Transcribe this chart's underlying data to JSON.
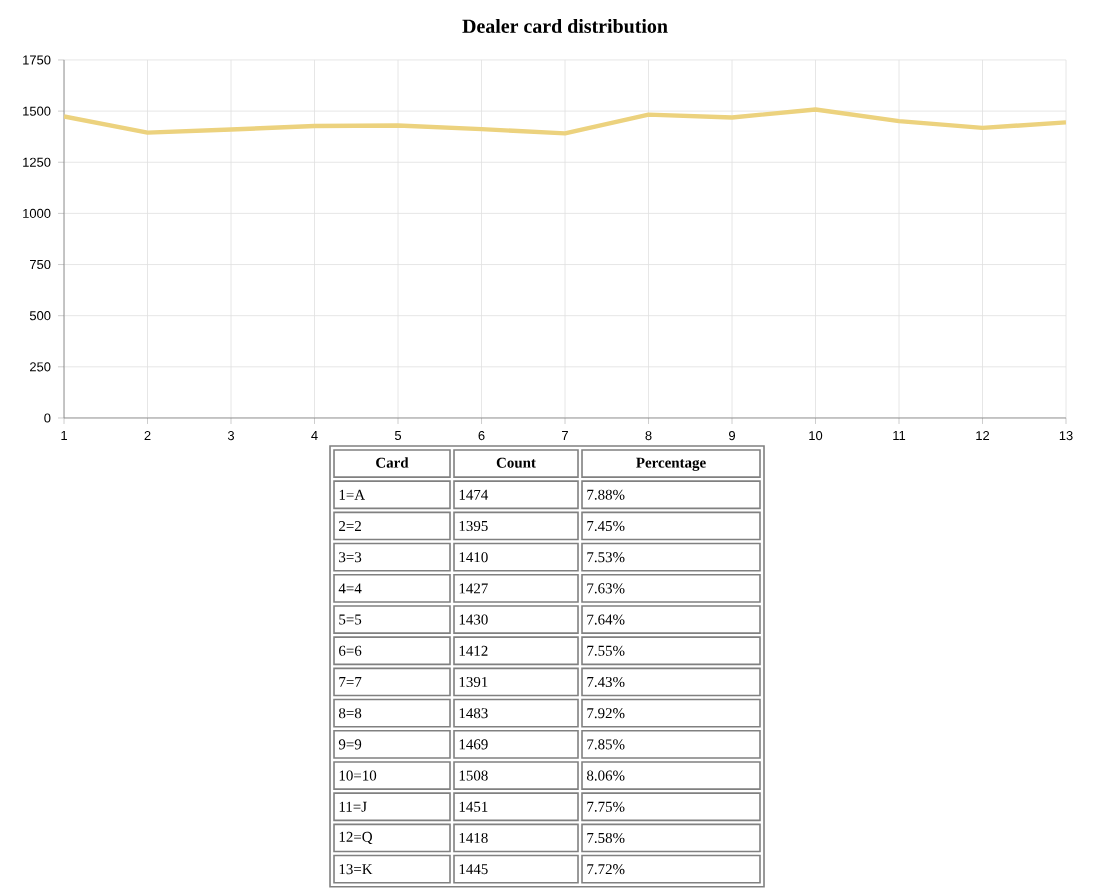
{
  "chart_data": [
    {
      "type": "line",
      "title": "Dealer card distribution",
      "x": [
        1,
        2,
        3,
        4,
        5,
        6,
        7,
        8,
        9,
        10,
        11,
        12,
        13
      ],
      "series": [
        {
          "color": "#ecd27e",
          "values": [
            1474,
            1395,
            1410,
            1427,
            1430,
            1412,
            1391,
            1483,
            1469,
            1508,
            1451,
            1418,
            1445
          ]
        }
      ],
      "xlim": [
        1,
        13
      ],
      "xticks": [
        1,
        2,
        3,
        4,
        5,
        6,
        7,
        8,
        9,
        10,
        11,
        12,
        13
      ],
      "ylim": [
        0,
        1750
      ],
      "yticks": [
        0,
        250,
        500,
        750,
        1000,
        1250,
        1500,
        1750
      ],
      "grid": true,
      "marker": "none",
      "line_style": "solid"
    },
    {
      "type": "other",
      "categories": [
        "Card",
        "Count",
        "Percentage"
      ],
      "annotations": [
        "1=A",
        "1474",
        "7.88%",
        "2=2",
        "1395",
        "7.45%",
        "3=3",
        "1410",
        "7.53%",
        "4=4",
        "1427",
        "7.63%",
        "5=5",
        "1430",
        "7.64%",
        "6=6",
        "1412",
        "7.55%",
        "7=7",
        "1391",
        "7.43%",
        "8=8",
        "1483",
        "7.92%",
        "9=9",
        "1469",
        "7.85%",
        "10=10",
        "1508",
        "8.06%",
        "11=J",
        "1451",
        "7.75%",
        "12=Q",
        "1418",
        "7.58%",
        "13=K",
        "1445",
        "7.72%"
      ]
    }
  ]
}
